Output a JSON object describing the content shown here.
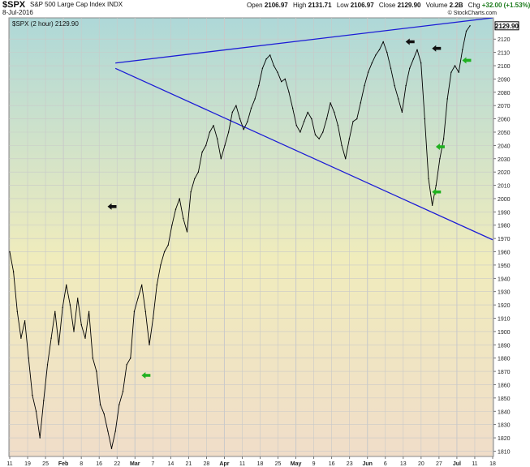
{
  "header": {
    "symbol": "$SPX",
    "description": "S&P 500 Large Cap Index  INDX",
    "date": "8-Jul-2016",
    "quote": {
      "open_label": "Open",
      "open": "2106.97",
      "high_label": "High",
      "high": "2131.71",
      "low_label": "Low",
      "low": "2106.97",
      "close_label": "Close",
      "close": "2129.90",
      "volume_label": "Volume",
      "volume": "2.2B",
      "chg_label": "Chg",
      "chg": "+32.00 (+1.53%)"
    },
    "stamp": "© StockCharts.com"
  },
  "chart_data": {
    "type": "line",
    "title": "$SPX (2 hour) 2129.90",
    "last_value_tag": "2129.90",
    "x_tick_labels": [
      "11",
      "19",
      "25",
      "Feb",
      "8",
      "16",
      "22",
      "Mar",
      "7",
      "14",
      "21",
      "28",
      "Apr",
      "11",
      "18",
      "25",
      "May",
      "9",
      "16",
      "23",
      "Jun",
      "6",
      "13",
      "20",
      "27",
      "Jul",
      "11",
      "18"
    ],
    "x_major_ticks": [
      "Feb",
      "Mar",
      "Apr",
      "May",
      "Jun",
      "Jul"
    ],
    "y_tick_labels": [
      "1810",
      "1820",
      "1830",
      "1840",
      "1850",
      "1860",
      "1870",
      "1880",
      "1890",
      "1900",
      "1910",
      "1920",
      "1930",
      "1940",
      "1950",
      "1960",
      "1970",
      "1980",
      "1990",
      "2000",
      "2010",
      "2020",
      "2030",
      "2040",
      "2050",
      "2060",
      "2070",
      "2080",
      "2090",
      "2100",
      "2110",
      "2120"
    ],
    "ylim": [
      1806,
      2136
    ],
    "y_axis_position": "right",
    "grid": true,
    "series": [
      {
        "values": [
          [
            0,
            1960
          ],
          [
            1,
            1945
          ],
          [
            2,
            1915
          ],
          [
            3,
            1895
          ],
          [
            4,
            1908
          ],
          [
            5,
            1880
          ],
          [
            6,
            1852
          ],
          [
            7,
            1840
          ],
          [
            8,
            1820
          ],
          [
            9,
            1848
          ],
          [
            10,
            1875
          ],
          [
            11,
            1895
          ],
          [
            12,
            1915
          ],
          [
            13,
            1890
          ],
          [
            14,
            1918
          ],
          [
            15,
            1935
          ],
          [
            16,
            1920
          ],
          [
            17,
            1900
          ],
          [
            18,
            1925
          ],
          [
            19,
            1905
          ],
          [
            20,
            1895
          ],
          [
            21,
            1915
          ],
          [
            22,
            1880
          ],
          [
            23,
            1870
          ],
          [
            24,
            1845
          ],
          [
            25,
            1838
          ],
          [
            26,
            1825
          ],
          [
            27,
            1812
          ],
          [
            28,
            1825
          ],
          [
            29,
            1845
          ],
          [
            30,
            1855
          ],
          [
            31,
            1875
          ],
          [
            32,
            1880
          ],
          [
            33,
            1915
          ],
          [
            34,
            1925
          ],
          [
            35,
            1935
          ],
          [
            36,
            1915
          ],
          [
            37,
            1890
          ],
          [
            38,
            1910
          ],
          [
            39,
            1935
          ],
          [
            40,
            1950
          ],
          [
            41,
            1960
          ],
          [
            42,
            1965
          ],
          [
            43,
            1980
          ],
          [
            44,
            1992
          ],
          [
            45,
            2000
          ],
          [
            46,
            1985
          ],
          [
            47,
            1975
          ],
          [
            48,
            2005
          ],
          [
            49,
            2015
          ],
          [
            50,
            2020
          ],
          [
            51,
            2035
          ],
          [
            52,
            2040
          ],
          [
            53,
            2050
          ],
          [
            54,
            2055
          ],
          [
            55,
            2045
          ],
          [
            56,
            2030
          ],
          [
            57,
            2040
          ],
          [
            58,
            2050
          ],
          [
            59,
            2065
          ],
          [
            60,
            2070
          ],
          [
            61,
            2060
          ],
          [
            62,
            2052
          ],
          [
            63,
            2058
          ],
          [
            64,
            2068
          ],
          [
            65,
            2075
          ],
          [
            66,
            2085
          ],
          [
            67,
            2098
          ],
          [
            68,
            2105
          ],
          [
            69,
            2108
          ],
          [
            70,
            2100
          ],
          [
            71,
            2095
          ],
          [
            72,
            2088
          ],
          [
            73,
            2090
          ],
          [
            74,
            2080
          ],
          [
            75,
            2068
          ],
          [
            76,
            2055
          ],
          [
            77,
            2050
          ],
          [
            78,
            2058
          ],
          [
            79,
            2065
          ],
          [
            80,
            2060
          ],
          [
            81,
            2048
          ],
          [
            82,
            2045
          ],
          [
            83,
            2050
          ],
          [
            84,
            2060
          ],
          [
            85,
            2072
          ],
          [
            86,
            2065
          ],
          [
            87,
            2055
          ],
          [
            88,
            2040
          ],
          [
            89,
            2030
          ],
          [
            90,
            2045
          ],
          [
            91,
            2058
          ],
          [
            92,
            2060
          ],
          [
            93,
            2072
          ],
          [
            94,
            2085
          ],
          [
            95,
            2095
          ],
          [
            96,
            2102
          ],
          [
            97,
            2108
          ],
          [
            98,
            2112
          ],
          [
            99,
            2118
          ],
          [
            100,
            2110
          ],
          [
            101,
            2098
          ],
          [
            102,
            2085
          ],
          [
            103,
            2075
          ],
          [
            104,
            2065
          ],
          [
            105,
            2085
          ],
          [
            106,
            2098
          ],
          [
            107,
            2105
          ],
          [
            108,
            2112
          ],
          [
            109,
            2102
          ],
          [
            110,
            2060
          ],
          [
            111,
            2015
          ],
          [
            112,
            1995
          ],
          [
            113,
            2010
          ],
          [
            114,
            2030
          ],
          [
            115,
            2045
          ],
          [
            116,
            2075
          ],
          [
            117,
            2095
          ],
          [
            118,
            2100
          ],
          [
            119,
            2095
          ],
          [
            120,
            2112
          ],
          [
            121,
            2126
          ],
          [
            122,
            2130
          ]
        ]
      }
    ],
    "trendlines": [
      {
        "role": "upper",
        "from": [
          28,
          2102
        ],
        "to": [
          128,
          2136
        ]
      },
      {
        "role": "lower",
        "from": [
          28,
          2098
        ],
        "to": [
          128,
          1969
        ]
      }
    ],
    "annotations": [
      {
        "kind": "arrow",
        "color": "#111111",
        "direction": "left",
        "x": 27,
        "y": 1994
      },
      {
        "kind": "arrow",
        "color": "#111111",
        "direction": "left",
        "x": 106,
        "y": 2118
      },
      {
        "kind": "arrow",
        "color": "#111111",
        "direction": "left",
        "x": 113,
        "y": 2113
      },
      {
        "kind": "arrow",
        "color": "#20b020",
        "direction": "left",
        "x": 36,
        "y": 1867
      },
      {
        "kind": "arrow",
        "color": "#20b020",
        "direction": "left",
        "x": 114,
        "y": 2039
      },
      {
        "kind": "arrow",
        "color": "#20b020",
        "direction": "left",
        "x": 113,
        "y": 2005
      },
      {
        "kind": "arrow",
        "color": "#20b020",
        "direction": "left",
        "x": 121,
        "y": 2104
      }
    ],
    "colors": {
      "price": "#000000",
      "trendline": "#1c1cd6",
      "bg_top": "#aed8d8",
      "bg_mid": "#f0ecbc",
      "bg_bottom": "#f0ddc9",
      "grid": "#c9c9c9",
      "arrow_black": "#111111",
      "arrow_green": "#20b020"
    }
  }
}
